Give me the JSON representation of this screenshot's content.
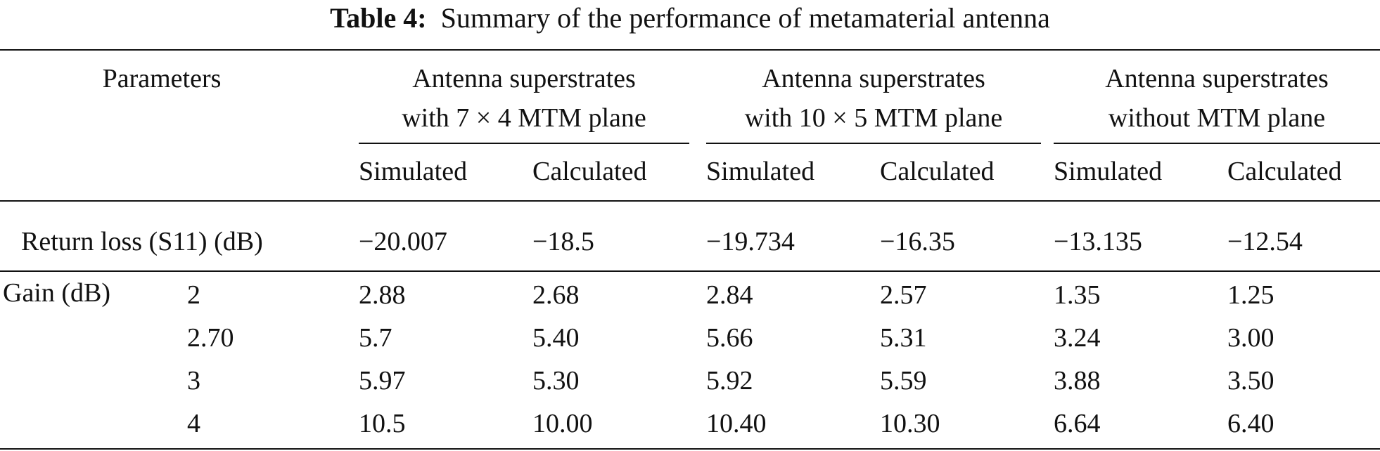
{
  "caption": {
    "label": "Table 4:",
    "text": "Summary of the performance of metamaterial antenna"
  },
  "header": {
    "parameters": "Parameters",
    "groups": [
      {
        "line1": "Antenna superstrates",
        "line2": "with 7 × 4 MTM plane"
      },
      {
        "line1": "Antenna superstrates",
        "line2": "with 10 × 5 MTM plane"
      },
      {
        "line1": "Antenna superstrates",
        "line2": "without MTM plane"
      }
    ],
    "sub": [
      "Simulated",
      "Calculated",
      "Simulated",
      "Calculated",
      "Simulated",
      "Calculated"
    ]
  },
  "return_loss": {
    "label": "Return loss (S11) (dB)",
    "values": [
      "−20.007",
      "−18.5",
      "−19.734",
      "−16.35",
      "−13.135",
      "−12.54"
    ]
  },
  "gain": {
    "label": "Gain (dB)",
    "rows": [
      {
        "freq": "2",
        "values": [
          "2.88",
          "2.68",
          "2.84",
          "2.57",
          "1.35",
          "1.25"
        ]
      },
      {
        "freq": "2.70",
        "values": [
          "5.7",
          "5.40",
          "5.66",
          "5.31",
          "3.24",
          "3.00"
        ]
      },
      {
        "freq": "3",
        "values": [
          "5.97",
          "5.30",
          "5.92",
          "5.59",
          "3.88",
          "3.50"
        ]
      },
      {
        "freq": "4",
        "values": [
          "10.5",
          "10.00",
          "10.40",
          "10.30",
          "6.64",
          "6.40"
        ]
      }
    ]
  }
}
